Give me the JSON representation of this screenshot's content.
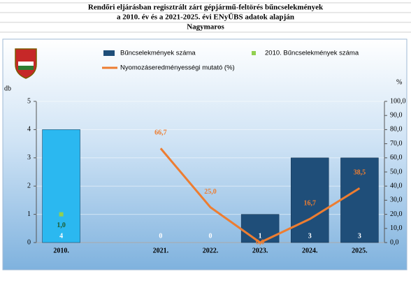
{
  "chart_data": {
    "type": "bar-line",
    "title_lines": [
      "Rendőri eljárásban regisztrált zárt gépjármű-feltörés bűncselekmények",
      "a 2010. év és a 2021-2025. évi ENyÜBS adatok alapján",
      "Nagymaros"
    ],
    "y_label": "db",
    "y2_label": "%",
    "categories": [
      "2010.",
      null,
      "2021.",
      "2022.",
      "2023.",
      "2024.",
      "2025."
    ],
    "series": [
      {
        "name": "Bűncselekmények száma",
        "type": "bar",
        "color": "#1f4e79",
        "colors": [
          "#2bb8f0",
          null,
          "#1f4e79",
          "#1f4e79",
          "#1f4e79",
          "#1f4e79",
          "#1f4e79"
        ],
        "values": [
          4,
          null,
          0,
          0,
          1,
          3,
          3
        ]
      },
      {
        "name": "2010. Bűncselekmények száma",
        "type": "marker",
        "color": "#92d050",
        "values": [
          1.0,
          null,
          null,
          null,
          null,
          null,
          null
        ],
        "value_labels": [
          "1,0",
          null,
          null,
          null,
          null,
          null,
          null
        ]
      },
      {
        "name": "Nyomozáseredményességi mutató (%)",
        "type": "line",
        "axis": "y2",
        "color": "#ed7d31",
        "values": [
          null,
          null,
          66.7,
          25.0,
          0.0,
          16.7,
          38.5
        ],
        "value_labels": [
          null,
          null,
          "66,7",
          "25,0",
          "0,0",
          "16,7",
          "38,5"
        ]
      }
    ],
    "ylim": [
      0,
      5
    ],
    "yticks": [
      0,
      1,
      2,
      3,
      4,
      5
    ],
    "y2lim": [
      0,
      100
    ],
    "y2ticks": [
      {
        "value": 0,
        "label": "0,0"
      },
      {
        "value": 10,
        "label": "10,0"
      },
      {
        "value": 20,
        "label": "20,0"
      },
      {
        "value": 30,
        "label": "30,0"
      },
      {
        "value": 40,
        "label": "40,0"
      },
      {
        "value": 50,
        "label": "50,0"
      },
      {
        "value": 60,
        "label": "60,0"
      },
      {
        "value": 70,
        "label": "70,0"
      },
      {
        "value": 80,
        "label": "80,0"
      },
      {
        "value": 90,
        "label": "90,0"
      },
      {
        "value": 100,
        "label": "100,0"
      }
    ],
    "grid": true
  }
}
